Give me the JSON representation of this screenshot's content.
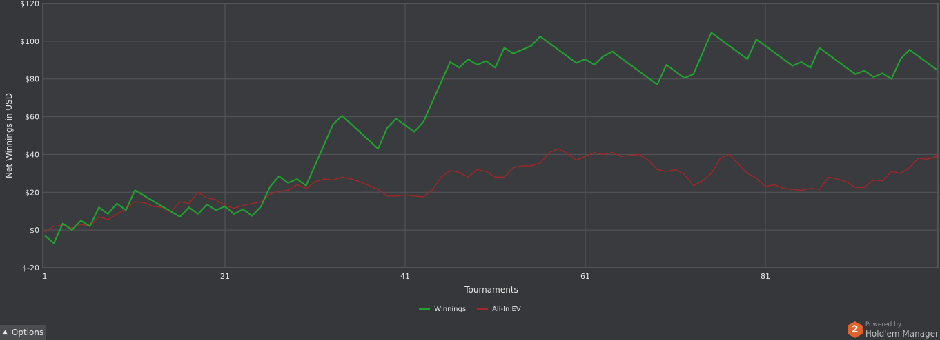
{
  "chart_data": {
    "type": "line",
    "xlabel": "Tournaments",
    "ylabel": "Net Winnings in USD",
    "xlim": [
      1,
      100
    ],
    "ylim": [
      -20,
      120
    ],
    "x_ticks": [
      1,
      21,
      41,
      61,
      81
    ],
    "y_ticks": [
      -20,
      0,
      20,
      40,
      60,
      80,
      100,
      120
    ],
    "y_tick_labels": [
      "$-20",
      "$0",
      "$20",
      "$40",
      "$60",
      "$80",
      "$100",
      "$120"
    ],
    "grid": true,
    "legend_position": "bottom",
    "series": [
      {
        "name": "Winnings",
        "color": "#22a030",
        "points": [
          [
            1,
            -3
          ],
          [
            2,
            -7
          ],
          [
            3,
            3.5
          ],
          [
            4,
            0
          ],
          [
            5,
            5
          ],
          [
            6,
            2
          ],
          [
            7,
            12
          ],
          [
            8,
            8.5
          ],
          [
            9,
            14
          ],
          [
            10,
            10.5
          ],
          [
            11,
            21
          ],
          [
            16,
            7
          ],
          [
            17,
            12
          ],
          [
            18,
            8.5
          ],
          [
            19,
            13.5
          ],
          [
            20,
            10.5
          ],
          [
            21,
            12.5
          ],
          [
            22,
            8.5
          ],
          [
            23,
            11
          ],
          [
            24,
            7.5
          ],
          [
            25,
            12.5
          ],
          [
            26,
            23
          ],
          [
            27,
            28.5
          ],
          [
            28,
            25
          ],
          [
            29,
            27
          ],
          [
            30,
            23.5
          ],
          [
            33,
            56
          ],
          [
            34,
            60.5
          ],
          [
            38,
            43
          ],
          [
            39,
            54
          ],
          [
            40,
            59
          ],
          [
            42,
            52
          ],
          [
            43,
            57
          ],
          [
            46,
            89
          ],
          [
            47,
            86
          ],
          [
            48,
            90.5
          ],
          [
            49,
            87.5
          ],
          [
            50,
            89.5
          ],
          [
            51,
            86
          ],
          [
            52,
            96.5
          ],
          [
            53,
            93.5
          ],
          [
            55,
            97.5
          ],
          [
            56,
            102.5
          ],
          [
            60,
            88.5
          ],
          [
            61,
            90.5
          ],
          [
            62,
            87.5
          ],
          [
            63,
            92
          ],
          [
            64,
            94.5
          ],
          [
            69,
            77
          ],
          [
            70,
            87.5
          ],
          [
            72,
            80.5
          ],
          [
            73,
            82.5
          ],
          [
            75,
            104.5
          ],
          [
            79,
            90.5
          ],
          [
            80,
            101
          ],
          [
            84,
            87
          ],
          [
            85,
            89
          ],
          [
            86,
            86
          ],
          [
            87,
            96.5
          ],
          [
            91,
            82.5
          ],
          [
            92,
            84.5
          ],
          [
            93,
            81
          ],
          [
            94,
            83
          ],
          [
            95,
            80
          ],
          [
            96,
            90.5
          ],
          [
            97,
            95.5
          ],
          [
            100,
            85
          ]
        ]
      },
      {
        "name": "All-In EV",
        "color": "#a42626",
        "points": [
          [
            1,
            -1
          ],
          [
            2,
            2
          ],
          [
            3,
            2.5
          ],
          [
            4,
            1
          ],
          [
            5,
            3
          ],
          [
            6,
            2
          ],
          [
            7,
            7
          ],
          [
            8,
            5.5
          ],
          [
            9,
            8.5
          ],
          [
            10,
            11
          ],
          [
            11,
            15
          ],
          [
            12,
            14.5
          ],
          [
            13,
            12.5
          ],
          [
            14,
            12
          ],
          [
            15,
            9.5
          ],
          [
            16,
            15
          ],
          [
            17,
            14
          ],
          [
            18,
            20
          ],
          [
            19,
            17
          ],
          [
            20,
            16
          ],
          [
            21,
            13
          ],
          [
            22,
            11.5
          ],
          [
            23,
            13
          ],
          [
            24,
            14
          ],
          [
            25,
            15
          ],
          [
            26,
            19
          ],
          [
            27,
            20.5
          ],
          [
            28,
            21
          ],
          [
            29,
            24
          ],
          [
            30,
            22
          ],
          [
            31,
            25.5
          ],
          [
            32,
            27
          ],
          [
            33,
            26.5
          ],
          [
            34,
            28
          ],
          [
            35,
            27
          ],
          [
            36,
            25.5
          ],
          [
            37,
            23.5
          ],
          [
            38,
            21.5
          ],
          [
            39,
            18
          ],
          [
            40,
            18
          ],
          [
            41,
            18.5
          ],
          [
            42,
            18
          ],
          [
            43,
            17.5
          ],
          [
            44,
            21
          ],
          [
            45,
            28
          ],
          [
            46,
            31.5
          ],
          [
            47,
            30.5
          ],
          [
            48,
            28
          ],
          [
            49,
            32
          ],
          [
            50,
            31
          ],
          [
            51,
            28
          ],
          [
            52,
            28
          ],
          [
            53,
            33
          ],
          [
            54,
            34
          ],
          [
            55,
            34
          ],
          [
            56,
            35.5
          ],
          [
            57,
            41
          ],
          [
            58,
            43
          ],
          [
            59,
            40.5
          ],
          [
            60,
            37
          ],
          [
            61,
            39
          ],
          [
            62,
            41
          ],
          [
            63,
            40
          ],
          [
            64,
            41
          ],
          [
            65,
            39
          ],
          [
            66,
            39.5
          ],
          [
            67,
            40
          ],
          [
            68,
            37
          ],
          [
            69,
            32
          ],
          [
            70,
            31
          ],
          [
            71,
            32
          ],
          [
            72,
            29.5
          ],
          [
            73,
            23.5
          ],
          [
            74,
            26
          ],
          [
            75,
            30
          ],
          [
            76,
            38
          ],
          [
            77,
            40
          ],
          [
            78,
            35
          ],
          [
            79,
            30
          ],
          [
            80,
            27.5
          ],
          [
            81,
            23
          ],
          [
            82,
            24
          ],
          [
            83,
            22
          ],
          [
            84,
            21.5
          ],
          [
            85,
            21
          ],
          [
            86,
            22
          ],
          [
            87,
            21.5
          ],
          [
            88,
            28
          ],
          [
            89,
            27
          ],
          [
            90,
            25.5
          ],
          [
            91,
            22.5
          ],
          [
            92,
            22.5
          ],
          [
            93,
            26.5
          ],
          [
            94,
            26
          ],
          [
            95,
            31
          ],
          [
            96,
            30
          ],
          [
            97,
            33
          ],
          [
            98,
            38
          ],
          [
            99,
            37.5
          ],
          [
            100,
            39
          ],
          [
            101,
            37
          ]
        ]
      }
    ]
  },
  "footer": {
    "options_label": "Options",
    "options_icon": "caret-up-icon",
    "brand_badge": "2",
    "brand_powered": "Powered by",
    "brand_name": "Hold'em Manager",
    "brand_color": "#e1622a"
  }
}
